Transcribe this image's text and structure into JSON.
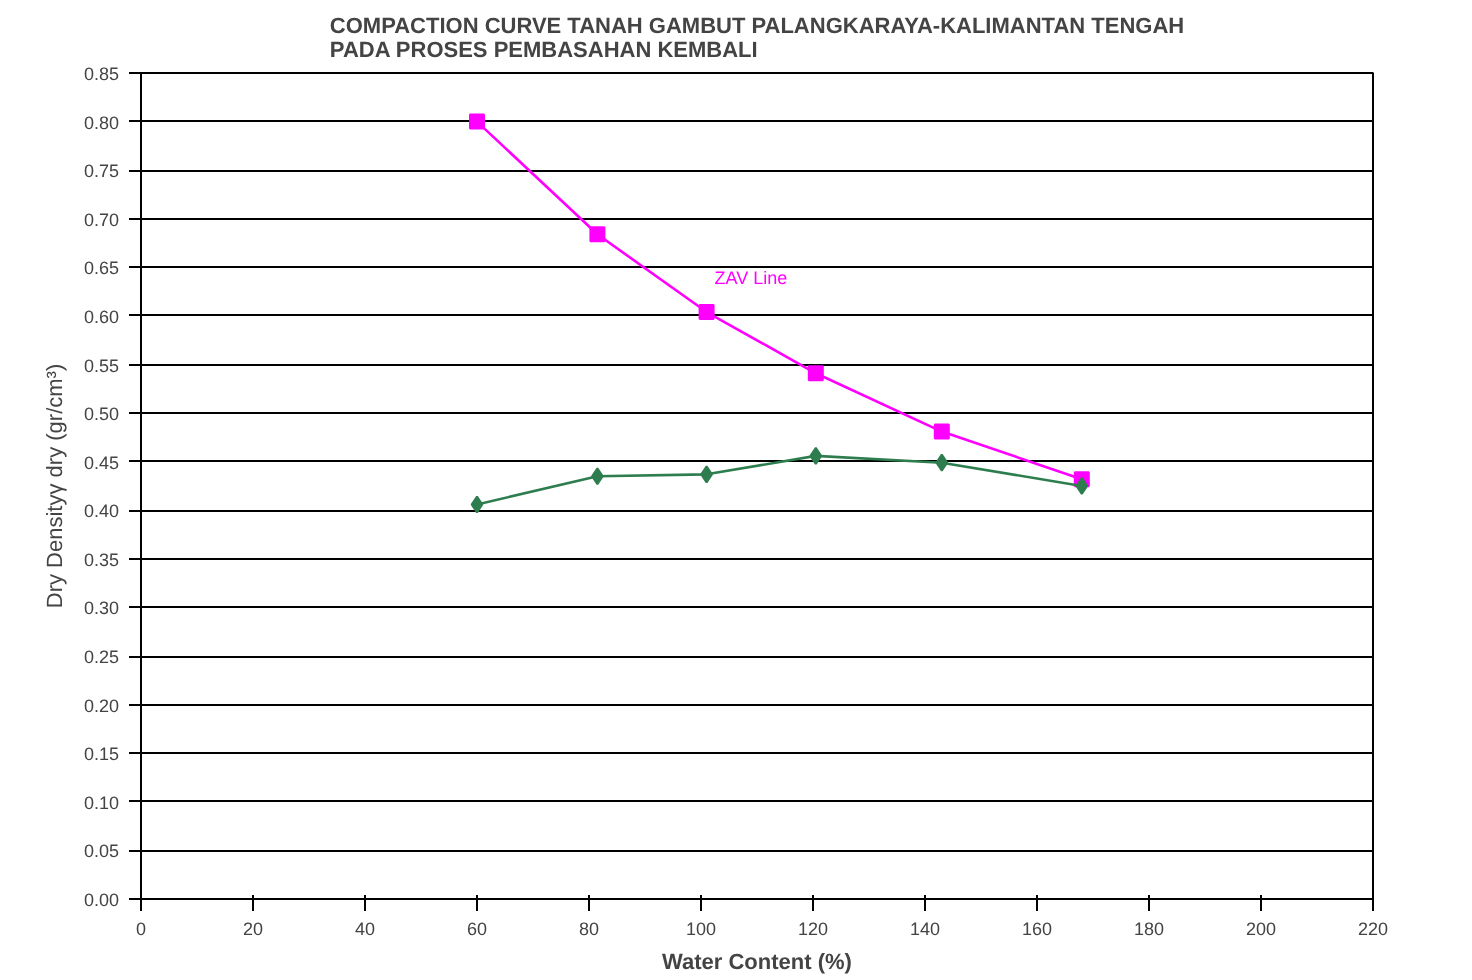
{
  "chart_data": {
    "type": "line",
    "title": "COMPACTION CURVE TANAH GAMBUT PALANGKARAYA-KALIMANTAN TENGAH\nPADA PROSES PEMBASAHAN KEMBALI",
    "xlabel": "Water Content (%)",
    "ylabel": "Dry Densityγ dry (gr/cm³)",
    "x": [
      60,
      81.5,
      101,
      120.5,
      143,
      168
    ],
    "series": [
      {
        "name": "ZAV Line",
        "color": "#ff00ff",
        "marker": "square",
        "values": [
          0.8,
          0.684,
          0.604,
          0.541,
          0.481,
          0.432
        ]
      },
      {
        "color": "#2e7d4f",
        "marker": "diamond",
        "values": [
          0.406,
          0.435,
          0.437,
          0.456,
          0.449,
          0.425
        ]
      }
    ],
    "xlim": [
      0,
      220
    ],
    "xticks": [
      0,
      20,
      40,
      60,
      80,
      100,
      120,
      140,
      160,
      180,
      200,
      220
    ],
    "ylim": [
      0,
      0.85
    ],
    "yticks": [
      {
        "value": 0,
        "label": "0.00"
      },
      {
        "value": 0.05,
        "label": "0.05"
      },
      {
        "value": 0.1,
        "label": "0.10"
      },
      {
        "value": 0.15,
        "label": "0.15"
      },
      {
        "value": 0.2,
        "label": "0.20"
      },
      {
        "value": 0.25,
        "label": "0.25"
      },
      {
        "value": 0.3,
        "label": "0.30"
      },
      {
        "value": 0.35,
        "label": "0.35"
      },
      {
        "value": 0.4,
        "label": "0.40"
      },
      {
        "value": 0.45,
        "label": "0.45"
      },
      {
        "value": 0.5,
        "label": "0.50"
      },
      {
        "value": 0.55,
        "label": "0.55"
      },
      {
        "value": 0.6,
        "label": "0.60"
      },
      {
        "value": 0.65,
        "label": "0.65"
      },
      {
        "value": 0.7,
        "label": "0.70"
      },
      {
        "value": 0.75,
        "label": "0.75"
      },
      {
        "value": 0.8,
        "label": "0.80"
      },
      {
        "value": 0.85,
        "label": "0.85"
      }
    ],
    "grid": "y",
    "line_style": "solid"
  }
}
